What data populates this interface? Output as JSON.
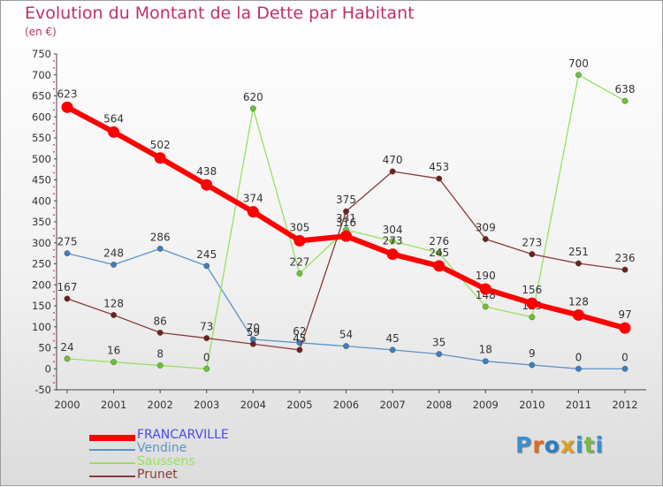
{
  "title": "Evolution du Montant de la Dette par Habitant",
  "subtitle": "(en €)",
  "logo": {
    "text": "Proxiti",
    "colors": [
      "#3a8fd0",
      "#e06a1a",
      "#2c7fc0",
      "#e0a020",
      "#3a8fd0",
      "#7ab648",
      "#3a8fd0"
    ]
  },
  "chart_data": {
    "type": "line",
    "title": "Evolution du Montant de la Dette par Habitant",
    "ylabel": "(en €)",
    "xlabel": "",
    "x": [
      "2000",
      "2001",
      "2002",
      "2003",
      "2004",
      "2005",
      "2006",
      "2007",
      "2008",
      "2009",
      "2010",
      "2011",
      "2012"
    ],
    "ylim": [
      -50,
      750
    ],
    "yticks": [
      -50,
      0,
      50,
      100,
      150,
      200,
      250,
      300,
      350,
      400,
      450,
      500,
      550,
      600,
      650,
      700,
      750
    ],
    "grid": false,
    "series": [
      {
        "name": "Vendine",
        "color": "#5b93c8",
        "point": "#3f7fbf",
        "width": 1.3,
        "radius": 3.2,
        "values": [
          275,
          248,
          286,
          245,
          70,
          62,
          54,
          45,
          35,
          18,
          9,
          0,
          0
        ],
        "labels": [
          "275",
          "248",
          "286",
          "245",
          "70",
          "62",
          "54",
          "45",
          "35",
          "18",
          "9",
          "0",
          "0"
        ]
      },
      {
        "name": "Saussens",
        "color": "#98e060",
        "point": "#6cc234",
        "width": 1.3,
        "radius": 3.2,
        "values": [
          24,
          16,
          8,
          0,
          620,
          227,
          331,
          304,
          276,
          148,
          123,
          700,
          638
        ],
        "labels": [
          "24",
          "16",
          "8",
          "0",
          "620",
          "227",
          "331",
          "304",
          "276",
          "148",
          "123",
          "700",
          "638"
        ]
      },
      {
        "name": "Prunet",
        "color": "#8a3a3a",
        "point": "#6e2020",
        "width": 1.3,
        "radius": 3.2,
        "values": [
          167,
          128,
          86,
          73,
          59,
          45,
          375,
          470,
          453,
          309,
          273,
          251,
          236
        ],
        "labels": [
          "167",
          "128",
          "86",
          "73",
          "59",
          "45",
          "375",
          "470",
          "453",
          "309",
          "273",
          "251",
          "236"
        ]
      },
      {
        "name": "FRANCARVILLE",
        "color": "#ff0000",
        "point": "#ff0000",
        "width": 6,
        "radius": 6.5,
        "values": [
          623,
          564,
          502,
          438,
          374,
          305,
          316,
          273,
          245,
          190,
          156,
          128,
          97
        ],
        "labels": [
          "623",
          "564",
          "502",
          "438",
          "374",
          "305",
          "316",
          "273",
          "245",
          "190",
          "156",
          "128",
          "97"
        ]
      }
    ],
    "legend": [
      {
        "name": "FRANCARVILLE",
        "color": "#ff0000",
        "thick": true
      },
      {
        "name": "Vendine",
        "color": "#5b93c8",
        "thick": false
      },
      {
        "name": "Saussens",
        "color": "#98e060",
        "thick": false
      },
      {
        "name": "Prunet",
        "color": "#8a3a3a",
        "thick": false
      }
    ],
    "legend_position": "bottom-left"
  }
}
